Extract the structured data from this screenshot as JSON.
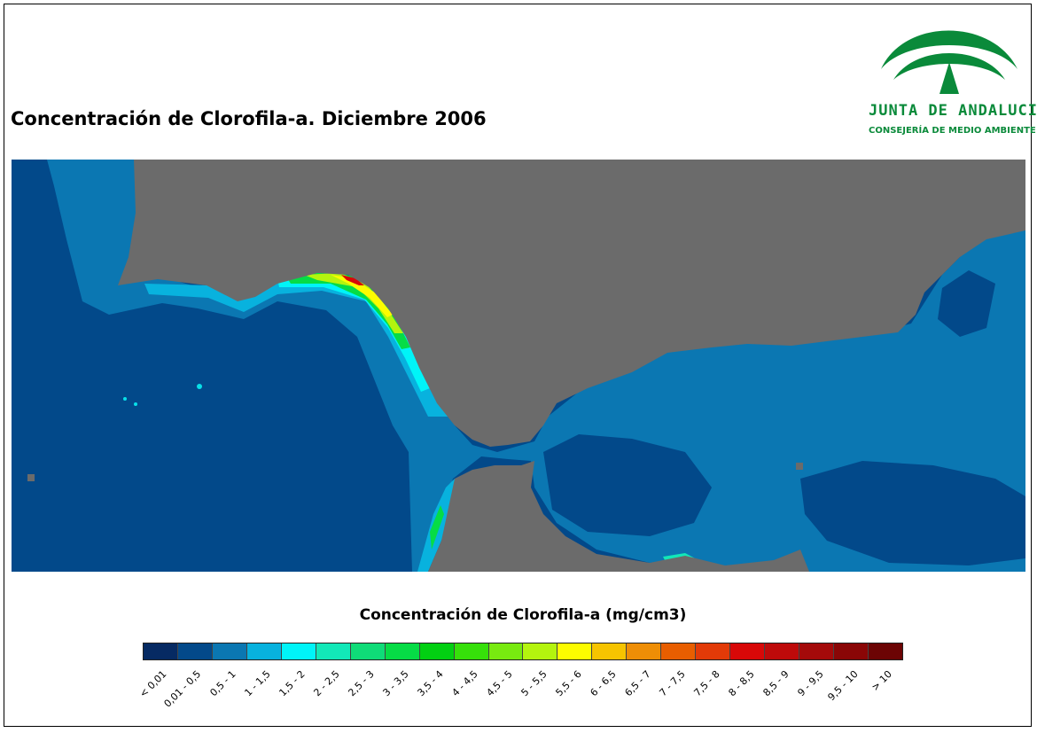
{
  "title": "Concentración de Clorofila-a. Diciembre 2006",
  "logo": {
    "name": "JUNTA DE ANDALUCIA",
    "subtitle": "CONSEJERÍA DE MEDIO AMBIENTE",
    "color": "#0a8a3a"
  },
  "map": {
    "land_color": "#6b6b6b",
    "deep_ocean_color": "#02498a"
  },
  "legend": {
    "title": "Concentración de Clorofila-a (mg/cm3)",
    "items": [
      {
        "label": "< 0,01",
        "color": "#062a63"
      },
      {
        "label": "0,01 - 0,5",
        "color": "#03498a"
      },
      {
        "label": "0,5 - 1",
        "color": "#0b77b2"
      },
      {
        "label": "1 - 1,5",
        "color": "#08b2de"
      },
      {
        "label": "1,5 - 2",
        "color": "#00f4f8"
      },
      {
        "label": "2 - 2,5",
        "color": "#12e8b8"
      },
      {
        "label": "2,5 - 3",
        "color": "#0fdc78"
      },
      {
        "label": "3 - 3,5",
        "color": "#06dc46"
      },
      {
        "label": "3,5 - 4",
        "color": "#02d012"
      },
      {
        "label": "4 - 4,5",
        "color": "#36e00a"
      },
      {
        "label": "4,5 - 5",
        "color": "#78ea10"
      },
      {
        "label": "5 - 5,5",
        "color": "#b4f40e"
      },
      {
        "label": "5,5 - 6",
        "color": "#fcfc00"
      },
      {
        "label": "6 - 6,5",
        "color": "#f6c400"
      },
      {
        "label": "6,5 - 7",
        "color": "#ee8e06"
      },
      {
        "label": "7 - 7,5",
        "color": "#e85e00"
      },
      {
        "label": "7,5 - 8",
        "color": "#e23a08"
      },
      {
        "label": "8 - 8,5",
        "color": "#d80808"
      },
      {
        "label": "8,5 - 9",
        "color": "#be0a0a"
      },
      {
        "label": "9 - 9,5",
        "color": "#a40a0a"
      },
      {
        "label": "9,5 - 10",
        "color": "#8a0606"
      },
      {
        "label": "> 10",
        "color": "#6c0404"
      }
    ]
  }
}
